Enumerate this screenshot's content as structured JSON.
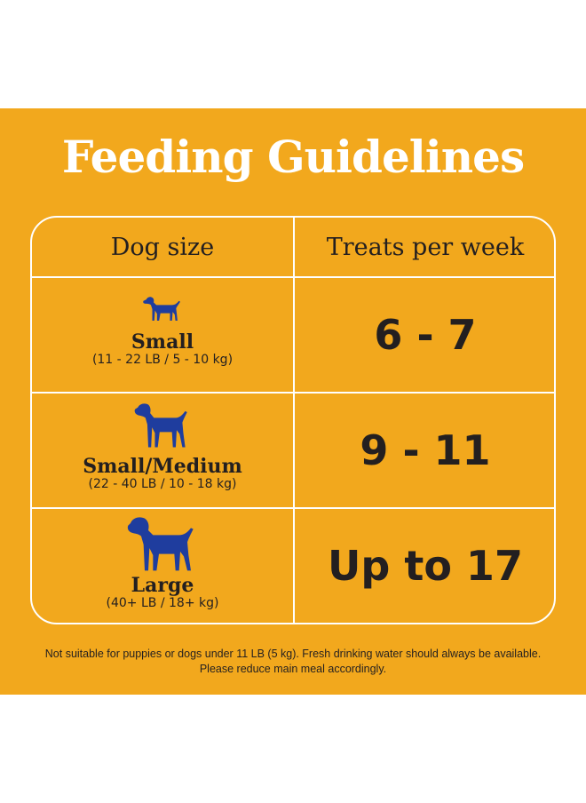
{
  "title": "Feeding Guidelines",
  "table": {
    "headers": {
      "size": "Dog size",
      "treats": "Treats per week"
    },
    "rows": [
      {
        "icon": "small-dog-icon",
        "name": "Small",
        "range": "(11 - 22 LB / 5 - 10 kg)",
        "treats": "6 - 7"
      },
      {
        "icon": "medium-dog-icon",
        "name": "Small/Medium",
        "range": "(22 - 40 LB / 10 - 18 kg)",
        "treats": "9 - 11"
      },
      {
        "icon": "large-dog-icon",
        "name": "Large",
        "range": "(40+ LB / 18+ kg)",
        "treats": "Up to 17"
      }
    ]
  },
  "footnote": "Not suitable for puppies or dogs under 11 LB (5 kg). Fresh drinking water should always be available. Please reduce main meal accordingly.",
  "colors": {
    "background": "#f2a81d",
    "dog": "#1f3d9e",
    "text": "#231f20",
    "title": "#ffffff"
  }
}
